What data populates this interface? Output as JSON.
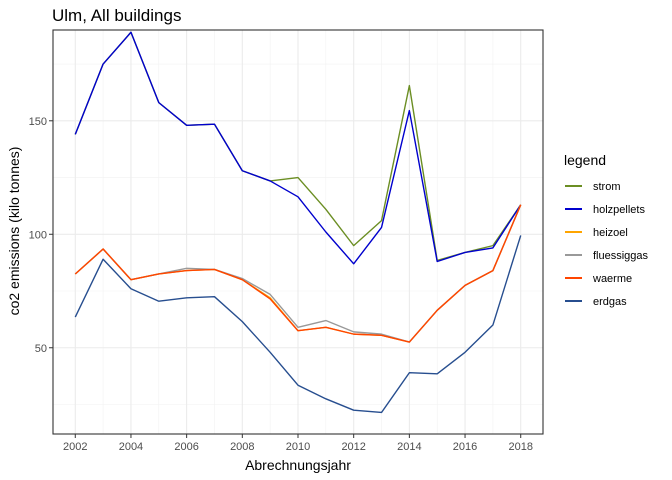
{
  "chart_data": {
    "type": "line",
    "title": "Ulm, All buildings",
    "xlabel": "Abrechnungsjahr",
    "ylabel": "co2 emissions (kilo tonnes)",
    "xlim": [
      2001.2,
      2018.8
    ],
    "ylim": [
      12,
      190
    ],
    "x_ticks": [
      2002,
      2004,
      2006,
      2008,
      2010,
      2012,
      2014,
      2016,
      2018
    ],
    "x_tick_labels": [
      "2002",
      "2004",
      "2006",
      "2008",
      "2010",
      "2012",
      "2014",
      "2016",
      "2018"
    ],
    "y_ticks": [
      50,
      100,
      150
    ],
    "y_tick_labels": [
      "50",
      "100",
      "150"
    ],
    "grid": true,
    "legend": {
      "title": "legend",
      "position": "right"
    },
    "x": [
      2002,
      2003,
      2004,
      2005,
      2006,
      2007,
      2008,
      2009,
      2010,
      2011,
      2012,
      2013,
      2014,
      2015,
      2016,
      2017,
      2018
    ],
    "series": [
      {
        "name": "strom",
        "color": "#6b8e23",
        "values": [
          144,
          175,
          189,
          158,
          148,
          148.5,
          128,
          123.5,
          125,
          111,
          95,
          106,
          165.5,
          88.5,
          92,
          95,
          113
        ]
      },
      {
        "name": "holzpellets",
        "color": "#0000cd",
        "values": [
          144,
          175,
          189,
          158,
          148,
          148.5,
          128,
          123.5,
          116.5,
          101,
          87,
          103,
          154.5,
          88,
          92,
          94,
          113
        ]
      },
      {
        "name": "heizoel",
        "color": "#ffa500",
        "values": [
          82.5,
          93.5,
          80,
          82.5,
          84,
          84.5,
          80,
          72,
          57.5,
          59,
          56,
          55.5,
          52.5,
          66.5,
          77.5,
          84,
          113
        ]
      },
      {
        "name": "fluessiggas",
        "color": "#999999",
        "values": [
          82.5,
          93.5,
          80,
          82.5,
          85,
          84.5,
          80.5,
          73.5,
          59,
          62,
          57,
          56,
          52.5,
          66.5,
          77.5,
          84,
          113
        ]
      },
      {
        "name": "waerme",
        "color": "#ff4500",
        "values": [
          82.5,
          93.5,
          80,
          82.5,
          84,
          84.5,
          80,
          71.5,
          57.5,
          59,
          56,
          55.5,
          52.5,
          66.5,
          77.5,
          84,
          113
        ]
      },
      {
        "name": "erdgas",
        "color": "#274e8f",
        "values": [
          63.5,
          89,
          76,
          70.5,
          72,
          72.5,
          61.5,
          48,
          33.5,
          27.5,
          22.5,
          21.5,
          39,
          38.5,
          48,
          60,
          99.5
        ]
      }
    ]
  }
}
